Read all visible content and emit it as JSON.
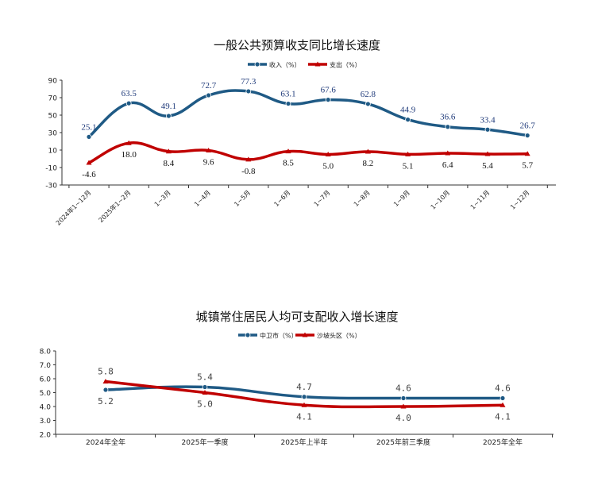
{
  "chart_data": [
    {
      "type": "line",
      "title": "一般公共预算收支同比增长速度",
      "categories": [
        "2024年1~12月",
        "2025年1~2月",
        "1~3月",
        "1~4月",
        "1~5月",
        "1~6月",
        "1~7月",
        "1~8月",
        "1~9月",
        "1~10月",
        "1~11月",
        "1~12月"
      ],
      "series": [
        {
          "name": "收入（%）",
          "color": "#1f5a85",
          "marker": "circle",
          "values": [
            25.1,
            63.5,
            49.1,
            72.7,
            77.3,
            63.1,
            67.6,
            62.8,
            44.9,
            36.6,
            33.4,
            26.7
          ],
          "labels": [
            "25.1",
            "63.5",
            "49.1",
            "72.7",
            "77.3",
            "63.1",
            "67.6",
            "62.8",
            "44.9",
            "36.6",
            "33.4",
            "26.7"
          ]
        },
        {
          "name": "支出（%）",
          "color": "#c00000",
          "marker": "triangle",
          "values": [
            -4.6,
            18.0,
            8.4,
            9.6,
            -0.8,
            8.5,
            5.0,
            8.2,
            5.1,
            6.4,
            5.4,
            5.7
          ],
          "labels": [
            "-4.6",
            "18.0",
            "8.4",
            "9.6",
            "-0.8",
            "8.5",
            "5.0",
            "8.2",
            "5.1",
            "6.4",
            "5.4",
            "5.7"
          ]
        }
      ],
      "ylim": [
        -30,
        90
      ],
      "yticks": [
        "90",
        "70",
        "50",
        "30",
        "10",
        "-10",
        "-30"
      ],
      "legend": "top-center"
    },
    {
      "type": "line",
      "title": "城镇常住居民人均可支配收入增长速度",
      "categories": [
        "2024年全年",
        "2025年一季度",
        "2025年上半年",
        "2025年前三季度",
        "2025年全年"
      ],
      "series": [
        {
          "name": "中卫市（%）",
          "color": "#1f5a85",
          "marker": "circle",
          "values": [
            5.2,
            5.4,
            4.7,
            4.6,
            4.6
          ],
          "labels": [
            "5.2",
            "5.4",
            "4.7",
            "4.6",
            "4.6"
          ]
        },
        {
          "name": "沙坡头区（%）",
          "color": "#c00000",
          "marker": "triangle",
          "values": [
            5.8,
            5.0,
            4.1,
            4.0,
            4.1
          ],
          "labels": [
            "5.8",
            "5.0",
            "4.1",
            "4.0",
            "4.1"
          ]
        }
      ],
      "ylim": [
        2.0,
        8.0
      ],
      "yticks": [
        "8.0",
        "7.0",
        "6.0",
        "5.0",
        "4.0",
        "3.0",
        "2.0"
      ],
      "legend": "top-center"
    }
  ]
}
